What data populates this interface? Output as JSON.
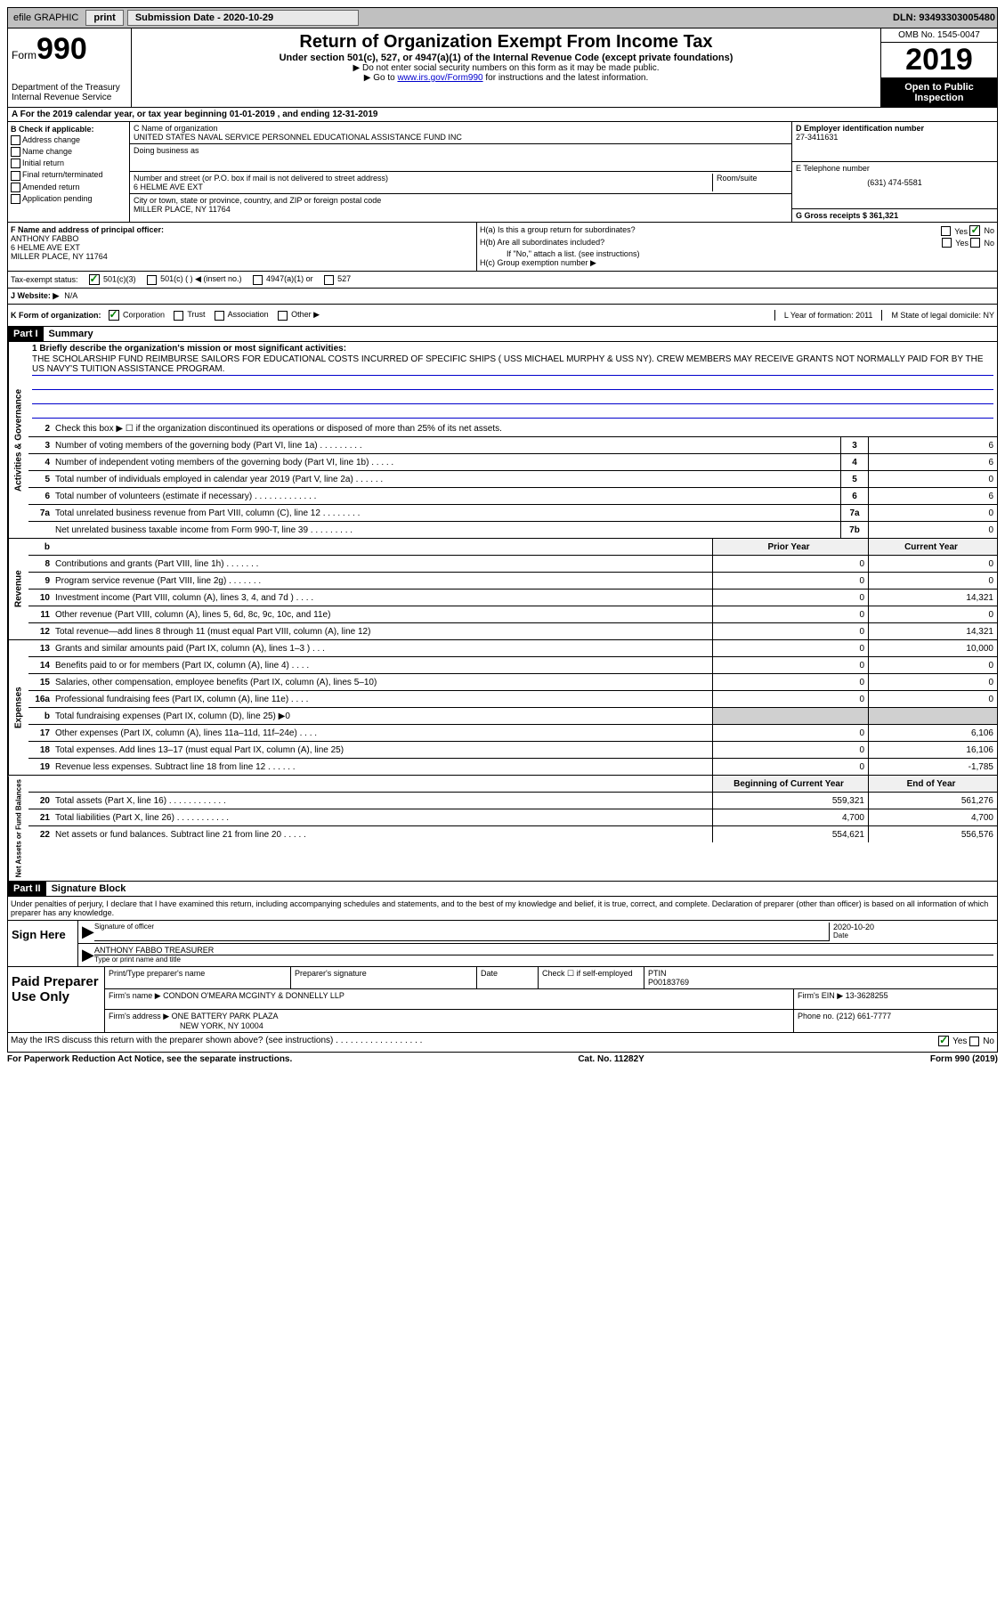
{
  "topbar": {
    "efile_label": "efile GRAPHIC",
    "print_btn": "print",
    "submission_label": "Submission Date - 2020-10-29",
    "dln": "DLN: 93493303005480"
  },
  "header": {
    "form_label": "Form",
    "form_number": "990",
    "dept": "Department of the Treasury\nInternal Revenue Service",
    "title": "Return of Organization Exempt From Income Tax",
    "subtitle": "Under section 501(c), 527, or 4947(a)(1) of the Internal Revenue Code (except private foundations)",
    "note1": "▶ Do not enter social security numbers on this form as it may be made public.",
    "note2_prefix": "▶ Go to ",
    "note2_link": "www.irs.gov/Form990",
    "note2_suffix": " for instructions and the latest information.",
    "omb": "OMB No. 1545-0047",
    "year": "2019",
    "inspection": "Open to Public Inspection"
  },
  "row_a": "A For the 2019 calendar year, or tax year beginning 01-01-2019    , and ending 12-31-2019",
  "section_b": {
    "header": "B Check if applicable:",
    "opts": [
      "Address change",
      "Name change",
      "Initial return",
      "Final return/terminated",
      "Amended return",
      "Application pending"
    ]
  },
  "section_c": {
    "name_label": "C Name of organization",
    "name": "UNITED STATES NAVAL SERVICE PERSONNEL EDUCATIONAL ASSISTANCE FUND INC",
    "dba_label": "Doing business as",
    "addr_label": "Number and street (or P.O. box if mail is not delivered to street address)",
    "room_label": "Room/suite",
    "addr": "6 HELME AVE EXT",
    "city_label": "City or town, state or province, country, and ZIP or foreign postal code",
    "city": "MILLER PLACE, NY  11764"
  },
  "section_d": {
    "label": "D Employer identification number",
    "ein": "27-3411631"
  },
  "section_e": {
    "label": "E Telephone number",
    "phone": "(631) 474-5581"
  },
  "section_g": {
    "label": "G Gross receipts $ 361,321"
  },
  "section_f": {
    "label": "F  Name and address of principal officer:",
    "name": "ANTHONY FABBO",
    "addr1": "6 HELME AVE EXT",
    "addr2": "MILLER PLACE, NY  11764"
  },
  "section_h": {
    "ha": "H(a)  Is this a group return for subordinates?",
    "hb": "H(b)  Are all subordinates included?",
    "hb_note": "If \"No,\" attach a list. (see instructions)",
    "hc": "H(c)  Group exemption number ▶",
    "yes": "Yes",
    "no": "No"
  },
  "tax_exempt": {
    "label": "Tax-exempt status:",
    "opt1": "501(c)(3)",
    "opt2": "501(c) (  ) ◀ (insert no.)",
    "opt3": "4947(a)(1) or",
    "opt4": "527"
  },
  "website": {
    "j_label": "J   Website: ▶",
    "j_val": "N/A"
  },
  "k_row": {
    "label": "K Form of organization:",
    "opts": [
      "Corporation",
      "Trust",
      "Association",
      "Other ▶"
    ],
    "l_label": "L Year of formation: 2011",
    "m_label": "M State of legal domicile: NY"
  },
  "part1": {
    "header": "Part I",
    "title": "Summary",
    "side_ag": "Activities & Governance",
    "side_rev": "Revenue",
    "side_exp": "Expenses",
    "side_net": "Net Assets or Fund Balances",
    "mission_label": "1  Briefly describe the organization's mission or most significant activities:",
    "mission": "THE SCHOLARSHIP FUND REIMBURSE SAILORS FOR EDUCATIONAL COSTS INCURRED OF SPECIFIC SHIPS ( USS MICHAEL MURPHY & USS NY). CREW MEMBERS MAY RECEIVE GRANTS NOT NORMALLY PAID FOR BY THE US NAVY'S TUITION ASSISTANCE PROGRAM.",
    "line2": "Check this box ▶ ☐  if the organization discontinued its operations or disposed of more than 25% of its net assets.",
    "lines_ag": [
      {
        "n": "3",
        "d": "Number of voting members of the governing body (Part VI, line 1a)   .   .   .   .   .   .   .   .   .",
        "box": "3",
        "v": "6"
      },
      {
        "n": "4",
        "d": "Number of independent voting members of the governing body (Part VI, line 1b)   .   .   .   .   .",
        "box": "4",
        "v": "6"
      },
      {
        "n": "5",
        "d": "Total number of individuals employed in calendar year 2019 (Part V, line 2a)   .   .   .   .   .   .",
        "box": "5",
        "v": "0"
      },
      {
        "n": "6",
        "d": "Total number of volunteers (estimate if necessary)   .   .   .   .   .   .   .   .   .   .   .   .   .",
        "box": "6",
        "v": "6"
      },
      {
        "n": "7a",
        "d": "Total unrelated business revenue from Part VIII, column (C), line 12   .   .   .   .   .   .   .   .",
        "box": "7a",
        "v": "0"
      },
      {
        "n": "",
        "d": "Net unrelated business taxable income from Form 990-T, line 39   .   .   .   .   .   .   .   .   .",
        "box": "7b",
        "v": "0"
      }
    ],
    "col_prior": "Prior Year",
    "col_current": "Current Year",
    "lines_rev": [
      {
        "n": "8",
        "d": "Contributions and grants (Part VIII, line 1h)   .   .   .   .   .   .   .",
        "p": "0",
        "c": "0"
      },
      {
        "n": "9",
        "d": "Program service revenue (Part VIII, line 2g)   .   .   .   .   .   .   .",
        "p": "0",
        "c": "0"
      },
      {
        "n": "10",
        "d": "Investment income (Part VIII, column (A), lines 3, 4, and 7d )   .   .   .   .",
        "p": "0",
        "c": "14,321"
      },
      {
        "n": "11",
        "d": "Other revenue (Part VIII, column (A), lines 5, 6d, 8c, 9c, 10c, and 11e)",
        "p": "0",
        "c": "0"
      },
      {
        "n": "12",
        "d": "Total revenue—add lines 8 through 11 (must equal Part VIII, column (A), line 12)",
        "p": "0",
        "c": "14,321"
      }
    ],
    "lines_exp": [
      {
        "n": "13",
        "d": "Grants and similar amounts paid (Part IX, column (A), lines 1–3 )   .   .   .",
        "p": "0",
        "c": "10,000"
      },
      {
        "n": "14",
        "d": "Benefits paid to or for members (Part IX, column (A), line 4)   .   .   .   .",
        "p": "0",
        "c": "0"
      },
      {
        "n": "15",
        "d": "Salaries, other compensation, employee benefits (Part IX, column (A), lines 5–10)",
        "p": "0",
        "c": "0"
      },
      {
        "n": "16a",
        "d": "Professional fundraising fees (Part IX, column (A), line 11e)   .   .   .   .",
        "p": "0",
        "c": "0"
      },
      {
        "n": "b",
        "d": "Total fundraising expenses (Part IX, column (D), line 25)  ▶0",
        "shade": true
      },
      {
        "n": "17",
        "d": "Other expenses (Part IX, column (A), lines 11a–11d, 11f–24e)   .   .   .   .",
        "p": "0",
        "c": "6,106"
      },
      {
        "n": "18",
        "d": "Total expenses. Add lines 13–17 (must equal Part IX, column (A), line 25)",
        "p": "0",
        "c": "16,106"
      },
      {
        "n": "19",
        "d": "Revenue less expenses. Subtract line 18 from line 12   .   .   .   .   .   .",
        "p": "0",
        "c": "-1,785"
      }
    ],
    "col_begin": "Beginning of Current Year",
    "col_end": "End of Year",
    "lines_net": [
      {
        "n": "20",
        "d": "Total assets (Part X, line 16)   .   .   .   .   .   .   .   .   .   .   .   .",
        "p": "559,321",
        "c": "561,276"
      },
      {
        "n": "21",
        "d": "Total liabilities (Part X, line 26)   .   .   .   .   .   .   .   .   .   .   .",
        "p": "4,700",
        "c": "4,700"
      },
      {
        "n": "22",
        "d": "Net assets or fund balances. Subtract line 21 from line 20   .   .   .   .   .",
        "p": "554,621",
        "c": "556,576"
      }
    ]
  },
  "part2": {
    "header": "Part II",
    "title": "Signature Block",
    "declaration": "Under penalties of perjury, I declare that I have examined this return, including accompanying schedules and statements, and to the best of my knowledge and belief, it is true, correct, and complete. Declaration of preparer (other than officer) is based on all information of which preparer has any knowledge.",
    "sign_here": "Sign Here",
    "sig_officer_label": "Signature of officer",
    "sig_date": "2020-10-20",
    "sig_date_label": "Date",
    "officer_name": "ANTHONY FABBO  TREASURER",
    "officer_name_label": "Type or print name and title",
    "paid_prep": "Paid Preparer Use Only",
    "prep_name_label": "Print/Type preparer's name",
    "prep_sig_label": "Preparer's signature",
    "prep_date_label": "Date",
    "prep_check_label": "Check ☐ if self-employed",
    "ptin_label": "PTIN",
    "ptin": "P00183769",
    "firm_name_label": "Firm's name    ▶",
    "firm_name": "CONDON O'MEARA MCGINTY & DONNELLY LLP",
    "firm_ein_label": "Firm's EIN ▶ 13-3628255",
    "firm_addr_label": "Firm's address ▶",
    "firm_addr1": "ONE BATTERY PARK PLAZA",
    "firm_addr2": "NEW YORK, NY  10004",
    "firm_phone": "Phone no. (212) 661-7777",
    "discuss": "May the IRS discuss this return with the preparer shown above? (see instructions)   .   .   .   .   .   .   .   .   .   .   .   .   .   .   .   .   .   ."
  },
  "footer": {
    "pra": "For Paperwork Reduction Act Notice, see the separate instructions.",
    "cat": "Cat. No. 11282Y",
    "formno": "Form 990 (2019)"
  }
}
